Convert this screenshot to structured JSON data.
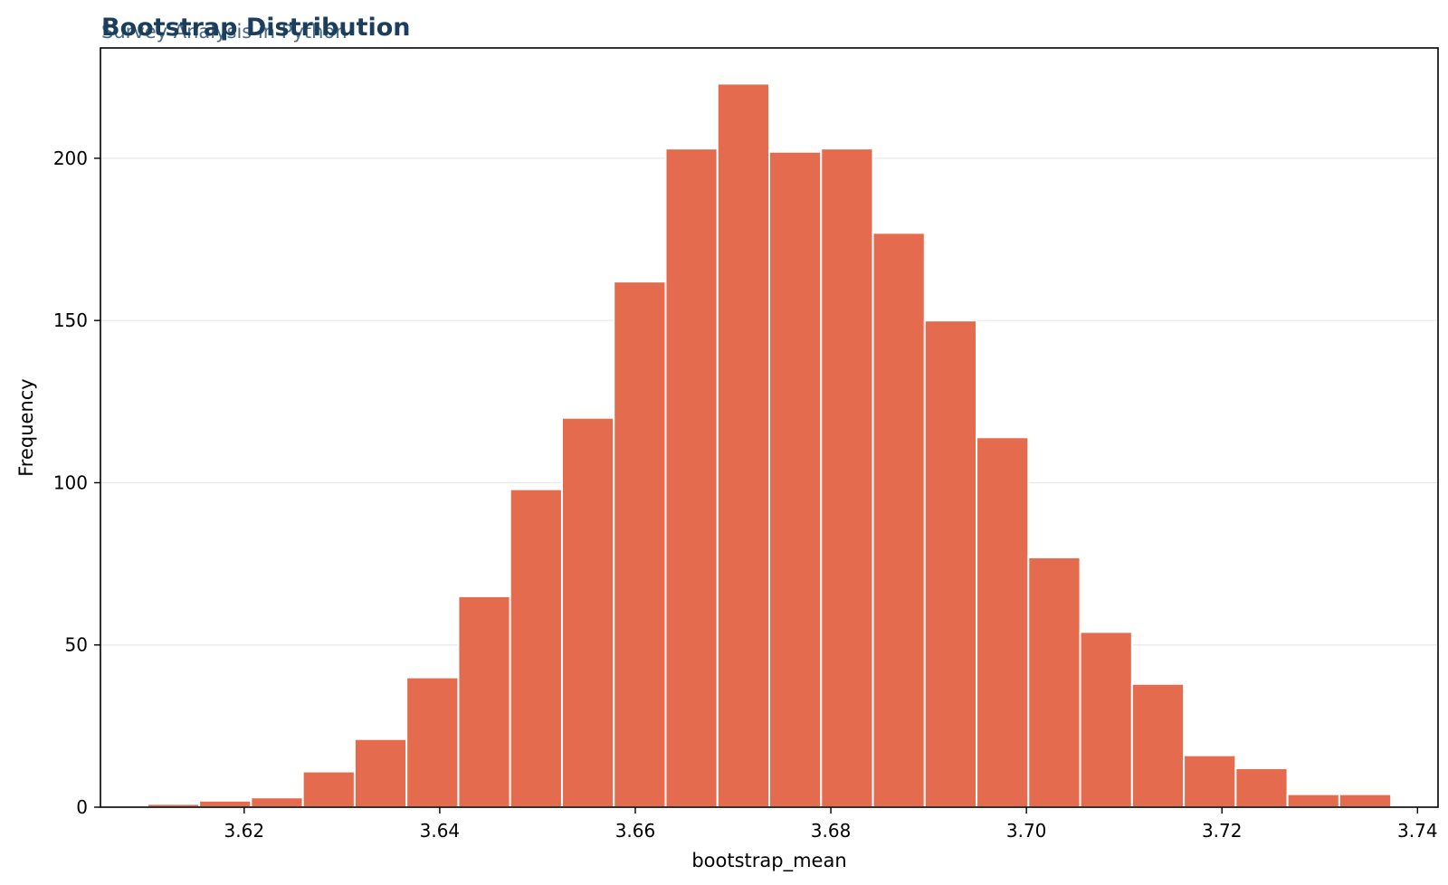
{
  "title": "Bootstrap Distribution",
  "subtitle": "Survey Analysis in Python",
  "colors": {
    "title": "#1a3e5c",
    "subtitle": "#4a6a86",
    "bar": "#e56b4e",
    "bar_edge": "#ffffff",
    "grid": "#e8e8e8",
    "axis": "#000000"
  },
  "chart_data": {
    "type": "bar",
    "title": "Bootstrap Distribution",
    "subtitle": "Survey Analysis in Python",
    "xlabel": "bootstrap_mean",
    "ylabel": "Frequency",
    "bin_edges": [
      3.6101,
      3.6154,
      3.6207,
      3.626,
      3.6313,
      3.6366,
      3.6419,
      3.6472,
      3.6525,
      3.6578,
      3.6631,
      3.6684,
      3.6737,
      3.679,
      3.6843,
      3.6896,
      3.6949,
      3.7002,
      3.7055,
      3.7108,
      3.7161,
      3.7214,
      3.7267,
      3.732,
      3.7373
    ],
    "values": [
      1,
      2,
      3,
      11,
      21,
      40,
      65,
      98,
      120,
      162,
      203,
      223,
      202,
      203,
      177,
      150,
      114,
      77,
      54,
      38,
      16,
      12,
      4,
      4
    ],
    "xlim": [
      3.6053,
      3.7421
    ],
    "ylim": [
      0,
      234
    ],
    "xticks": [
      3.62,
      3.64,
      3.66,
      3.68,
      3.7,
      3.72,
      3.74
    ],
    "xtick_labels": [
      "3.62",
      "3.64",
      "3.66",
      "3.68",
      "3.70",
      "3.72",
      "3.74"
    ],
    "yticks": [
      0,
      50,
      100,
      150,
      200
    ],
    "ytick_labels": [
      "0",
      "50",
      "100",
      "150",
      "200"
    ],
    "grid": "y-only"
  }
}
